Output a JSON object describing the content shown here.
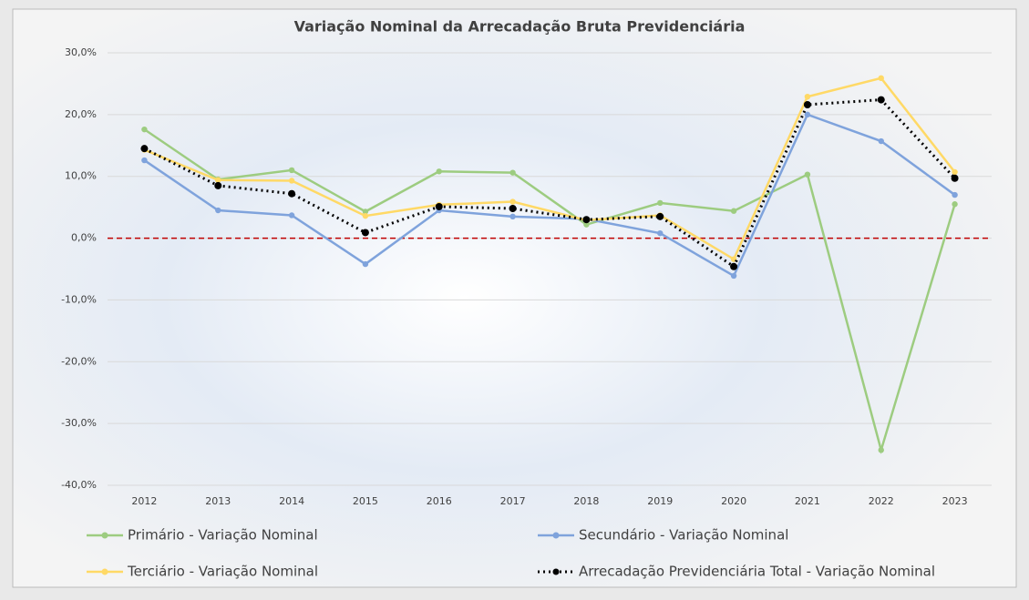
{
  "chart_data": {
    "type": "line",
    "title": "Variação Nominal da Arrecadação Bruta Previdenciária",
    "categories": [
      "2012",
      "2013",
      "2014",
      "2015",
      "2016",
      "2017",
      "2018",
      "2019",
      "2020",
      "2021",
      "2022",
      "2023"
    ],
    "series": [
      {
        "name": "Primário - Variação Nominal",
        "color": "#9dcc80",
        "values": [
          17.6,
          9.5,
          11.0,
          4.3,
          10.8,
          10.6,
          2.2,
          5.7,
          4.4,
          10.3,
          -34.3,
          5.5
        ]
      },
      {
        "name": "Secundário - Variação Nominal",
        "color": "#7fa3dc",
        "values": [
          12.6,
          4.5,
          3.7,
          -4.2,
          4.5,
          3.5,
          3.1,
          0.8,
          -6.1,
          20.0,
          15.7,
          7.0
        ]
      },
      {
        "name": "Terciário - Variação Nominal",
        "color": "#ffd966",
        "values": [
          14.3,
          9.4,
          9.3,
          3.6,
          5.4,
          5.9,
          2.9,
          3.7,
          -3.4,
          22.9,
          25.9,
          10.7
        ]
      },
      {
        "name": "Arrecadação Previdenciária Total - Variação Nominal",
        "color": "#000000",
        "dotted": true,
        "values": [
          14.5,
          8.5,
          7.2,
          0.9,
          5.1,
          4.8,
          3.0,
          3.5,
          -4.6,
          21.6,
          22.4,
          9.7
        ]
      }
    ],
    "ylim": [
      -40,
      30
    ],
    "yticks": [
      {
        "value": -40,
        "label": "-40,0%"
      },
      {
        "value": -30,
        "label": "-30,0%"
      },
      {
        "value": -20,
        "label": "-20,0%"
      },
      {
        "value": -10,
        "label": "-10,0%"
      },
      {
        "value": 0,
        "label": "0,0%"
      },
      {
        "value": 10,
        "label": "10,0%"
      },
      {
        "value": 20,
        "label": "20,0%"
      },
      {
        "value": 30,
        "label": "30,0%"
      }
    ],
    "grid": true,
    "reference_line": {
      "value": 0,
      "color": "#c00000"
    }
  }
}
